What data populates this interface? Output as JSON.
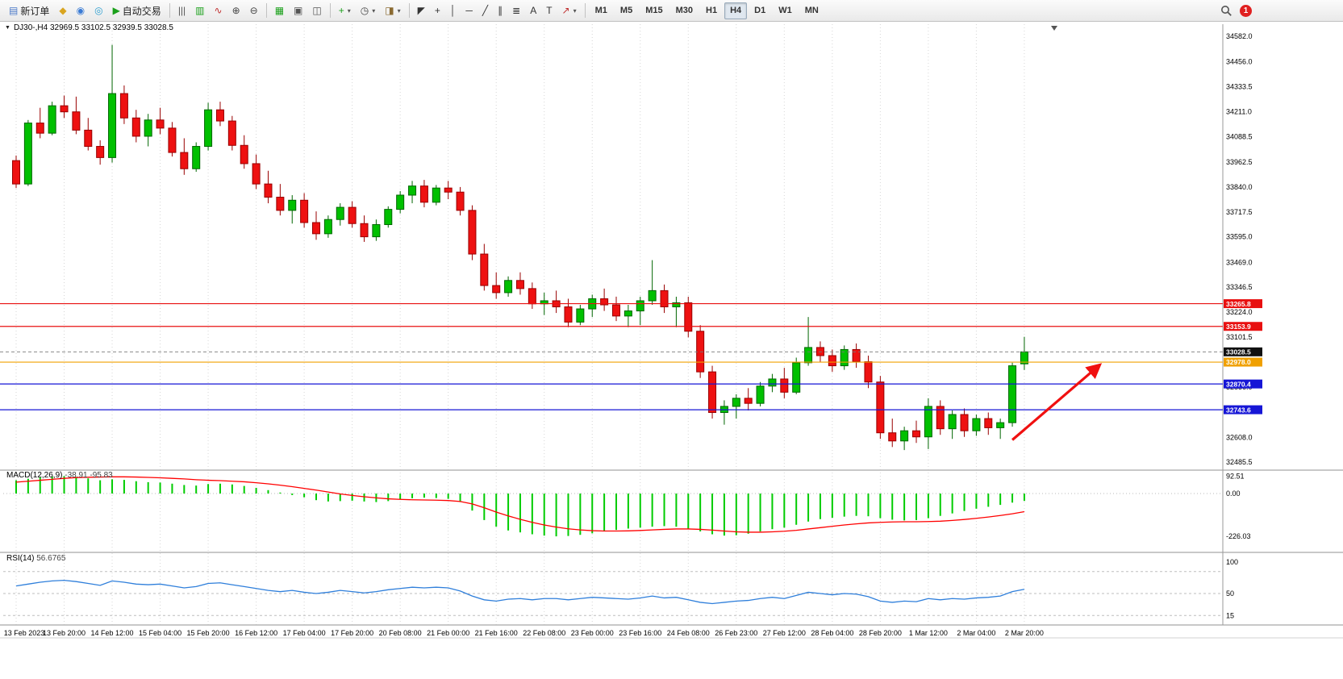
{
  "toolbar": {
    "caret_glyph": "▾",
    "notification_count": "1",
    "groups": [
      [
        {
          "name": "new-order",
          "glyph": "▤",
          "glyph_color": "#4a78c8",
          "label": "新订单"
        },
        {
          "name": "metaeditor",
          "glyph": "◆",
          "glyph_color": "#d9a520"
        },
        {
          "name": "market-watch",
          "glyph": "◉",
          "glyph_color": "#3a7bd5"
        },
        {
          "name": "community",
          "glyph": "◎",
          "glyph_color": "#2e9fd0"
        },
        {
          "name": "auto-trading",
          "glyph": "▶",
          "glyph_color": "#1aa01a",
          "label": "自动交易"
        }
      ],
      [
        {
          "name": "bar-chart",
          "glyph": "|||",
          "glyph_color": "#555555"
        },
        {
          "name": "candlestick-chart",
          "glyph": "▥",
          "glyph_color": "#1aa01a"
        },
        {
          "name": "line-chart",
          "glyph": "∿",
          "glyph_color": "#c03030"
        },
        {
          "name": "zoom-in",
          "glyph": "⊕",
          "glyph_color": "#444444"
        },
        {
          "name": "zoom-out",
          "glyph": "⊖",
          "glyph_color": "#444444"
        }
      ],
      [
        {
          "name": "indicators-list",
          "glyph": "▦",
          "glyph_color": "#1aa01a"
        },
        {
          "name": "new-window",
          "glyph": "▣",
          "glyph_color": "#555555"
        },
        {
          "name": "tile-windows",
          "glyph": "◫",
          "glyph_color": "#555555"
        }
      ],
      [
        {
          "name": "add-indicator",
          "glyph": "+",
          "glyph_color": "#1aa01a",
          "caret": true
        },
        {
          "name": "periods",
          "glyph": "◷",
          "glyph_color": "#444444",
          "caret": true
        },
        {
          "name": "templates",
          "glyph": "◨",
          "glyph_color": "#8a6a30",
          "caret": true
        }
      ],
      [
        {
          "name": "cursor",
          "glyph": "◤",
          "glyph_color": "#333333"
        },
        {
          "name": "crosshair",
          "glyph": "+",
          "glyph_color": "#333333"
        },
        {
          "name": "vertical-line",
          "glyph": "│",
          "glyph_color": "#333333"
        },
        {
          "name": "horizontal-line",
          "glyph": "─",
          "glyph_color": "#333333"
        },
        {
          "name": "trendline",
          "glyph": "╱",
          "glyph_color": "#333333"
        },
        {
          "name": "channel",
          "glyph": "∥",
          "glyph_color": "#333333"
        },
        {
          "name": "fibonacci",
          "glyph": "≣",
          "glyph_color": "#333333"
        },
        {
          "name": "text",
          "glyph": "A",
          "glyph_color": "#333333"
        },
        {
          "name": "text-label",
          "glyph": "T",
          "glyph_color": "#333333"
        },
        {
          "name": "arrows",
          "glyph": "↗",
          "glyph_color": "#c03030",
          "caret": true
        }
      ]
    ],
    "timeframes": {
      "items": [
        "M1",
        "M5",
        "M15",
        "M30",
        "H1",
        "H4",
        "D1",
        "W1",
        "MN"
      ],
      "active": "H4"
    }
  },
  "chart": {
    "collapse_glyph": "▼",
    "header": "DJ30-,H4 32969.5 33102.5 32939.5 33028.5",
    "symbol": "DJ30-",
    "timeframe": "H4",
    "open": "32969.5",
    "high": "33102.5",
    "low": "32939.5",
    "close": "33028.5"
  },
  "chart_data": {
    "type": "candlestick",
    "grid": "vertical-dotted",
    "y_range": [
      32485.5,
      34582.0
    ],
    "y_axis": {
      "labels": [
        "34582.0",
        "34456.0",
        "34333.5",
        "34211.0",
        "34088.5",
        "33962.5",
        "33840.0",
        "33717.5",
        "33595.0",
        "33469.0",
        "33346.5",
        "33224.0",
        "33101.5",
        "32978.5",
        "32856.0",
        "32733.5",
        "32608.0",
        "32485.5"
      ]
    },
    "x_labels": [
      "13 Feb 2023",
      "13 Feb 20:00",
      "14 Feb 12:00",
      "15 Feb 04:00",
      "15 Feb 20:00",
      "16 Feb 12:00",
      "17 Feb 04:00",
      "17 Feb 20:00",
      "20 Feb 08:00",
      "21 Feb 00:00",
      "21 Feb 16:00",
      "22 Feb 08:00",
      "23 Feb 00:00",
      "23 Feb 16:00",
      "24 Feb 08:00",
      "26 Feb 23:00",
      "27 Feb 12:00",
      "28 Feb 04:00",
      "28 Feb 20:00",
      "1 Mar 12:00",
      "2 Mar 04:00",
      "2 Mar 20:00"
    ],
    "colors": {
      "up": "#00c000",
      "down": "#ee1111",
      "up_border": "#006600",
      "down_border": "#990000"
    },
    "candles": [
      [
        33970,
        33995,
        33835,
        33855
      ],
      [
        33855,
        34170,
        33845,
        34155
      ],
      [
        34155,
        34230,
        34080,
        34105
      ],
      [
        34105,
        34260,
        34095,
        34240
      ],
      [
        34240,
        34290,
        34180,
        34210
      ],
      [
        34210,
        34285,
        34100,
        34120
      ],
      [
        34120,
        34180,
        34020,
        34040
      ],
      [
        34040,
        34070,
        33950,
        33985
      ],
      [
        33985,
        34540,
        33960,
        34300
      ],
      [
        34300,
        34340,
        34150,
        34180
      ],
      [
        34180,
        34220,
        34060,
        34090
      ],
      [
        34090,
        34200,
        34040,
        34170
      ],
      [
        34170,
        34230,
        34100,
        34130
      ],
      [
        34130,
        34160,
        33990,
        34010
      ],
      [
        34010,
        34080,
        33900,
        33930
      ],
      [
        33930,
        34060,
        33915,
        34040
      ],
      [
        34040,
        34255,
        34020,
        34220
      ],
      [
        34220,
        34260,
        34140,
        34165
      ],
      [
        34165,
        34190,
        34020,
        34045
      ],
      [
        34045,
        34095,
        33930,
        33955
      ],
      [
        33955,
        34000,
        33830,
        33855
      ],
      [
        33855,
        33920,
        33760,
        33790
      ],
      [
        33790,
        33855,
        33700,
        33725
      ],
      [
        33725,
        33800,
        33660,
        33775
      ],
      [
        33775,
        33810,
        33640,
        33665
      ],
      [
        33665,
        33720,
        33580,
        33610
      ],
      [
        33610,
        33700,
        33590,
        33680
      ],
      [
        33680,
        33760,
        33650,
        33740
      ],
      [
        33740,
        33770,
        33640,
        33660
      ],
      [
        33660,
        33700,
        33570,
        33595
      ],
      [
        33595,
        33680,
        33575,
        33655
      ],
      [
        33655,
        33745,
        33640,
        33730
      ],
      [
        33730,
        33820,
        33710,
        33800
      ],
      [
        33800,
        33870,
        33760,
        33845
      ],
      [
        33845,
        33875,
        33740,
        33765
      ],
      [
        33765,
        33850,
        33750,
        33835
      ],
      [
        33835,
        33870,
        33780,
        33815
      ],
      [
        33815,
        33840,
        33700,
        33725
      ],
      [
        33725,
        33750,
        33480,
        33510
      ],
      [
        33510,
        33560,
        33330,
        33355
      ],
      [
        33355,
        33420,
        33290,
        33320
      ],
      [
        33320,
        33400,
        33300,
        33380
      ],
      [
        33380,
        33420,
        33310,
        33340
      ],
      [
        33340,
        33370,
        33240,
        33265
      ],
      [
        33265,
        33320,
        33210,
        33280
      ],
      [
        33280,
        33330,
        33220,
        33250
      ],
      [
        33250,
        33290,
        33150,
        33175
      ],
      [
        33175,
        33260,
        33160,
        33240
      ],
      [
        33240,
        33310,
        33200,
        33290
      ],
      [
        33290,
        33340,
        33230,
        33260
      ],
      [
        33260,
        33300,
        33180,
        33205
      ],
      [
        33205,
        33260,
        33150,
        33230
      ],
      [
        33230,
        33300,
        33160,
        33280
      ],
      [
        33280,
        33480,
        33260,
        33330
      ],
      [
        33330,
        33360,
        33220,
        33250
      ],
      [
        33250,
        33300,
        33150,
        33270
      ],
      [
        33270,
        33300,
        33100,
        33130
      ],
      [
        33130,
        33160,
        32900,
        32930
      ],
      [
        32930,
        32960,
        32700,
        32730
      ],
      [
        32730,
        32790,
        32670,
        32760
      ],
      [
        32760,
        32820,
        32700,
        32800
      ],
      [
        32800,
        32850,
        32740,
        32775
      ],
      [
        32775,
        32880,
        32760,
        32860
      ],
      [
        32860,
        32920,
        32830,
        32895
      ],
      [
        32895,
        32950,
        32800,
        32830
      ],
      [
        32830,
        33000,
        32820,
        32975
      ],
      [
        32975,
        33200,
        32960,
        33050
      ],
      [
        33050,
        33080,
        32980,
        33010
      ],
      [
        33010,
        33040,
        32930,
        32960
      ],
      [
        32960,
        33060,
        32940,
        33040
      ],
      [
        33040,
        33070,
        32950,
        32980
      ],
      [
        32980,
        33010,
        32850,
        32880
      ],
      [
        32880,
        32910,
        32600,
        32630
      ],
      [
        32630,
        32700,
        32560,
        32590
      ],
      [
        32590,
        32660,
        32545,
        32640
      ],
      [
        32640,
        32690,
        32580,
        32610
      ],
      [
        32610,
        32800,
        32550,
        32760
      ],
      [
        32760,
        32790,
        32620,
        32650
      ],
      [
        32650,
        32740,
        32600,
        32720
      ],
      [
        32720,
        32750,
        32610,
        32640
      ],
      [
        32640,
        32720,
        32615,
        32700
      ],
      [
        32700,
        32730,
        32620,
        32655
      ],
      [
        32655,
        32700,
        32600,
        32680
      ],
      [
        32680,
        32975,
        32660,
        32960
      ],
      [
        32969.5,
        33102.5,
        32939.5,
        33028.5
      ]
    ],
    "hlines": [
      {
        "price": 33265.8,
        "label": "33265.8",
        "color": "#e81010"
      },
      {
        "price": 33153.9,
        "label": "33153.9",
        "color": "#e81010"
      },
      {
        "price": 32978.0,
        "label": "32978.0",
        "color": "#f0a000"
      },
      {
        "price": 32870.4,
        "label": "32870.4",
        "color": "#1616d6"
      },
      {
        "price": 32743.6,
        "label": "32743.6",
        "color": "#1616d6"
      }
    ],
    "current_price": {
      "value": 33028.5,
      "label": "33028.5",
      "badge_color": "#111111"
    },
    "annotations": [
      {
        "type": "arrow",
        "from_bar": 83,
        "from_price": 32595,
        "to_bar": 90.3,
        "to_price": 32965,
        "color": "#f01010"
      }
    ],
    "indicators": [
      {
        "name": "MACD",
        "label": "MACD(12,26,9)",
        "values_text": "-38.91 -95.83",
        "axis_labels": [
          "92.51",
          "0.00",
          "-226.03"
        ],
        "colors": {
          "histogram": "#00cc00",
          "signal": "#ff0000"
        },
        "histogram": [
          70,
          78,
          85,
          90,
          92,
          88,
          80,
          70,
          75,
          72,
          65,
          60,
          58,
          52,
          45,
          42,
          50,
          52,
          48,
          40,
          30,
          18,
          5,
          -8,
          -20,
          -35,
          -42,
          -40,
          -38,
          -42,
          -45,
          -40,
          -32,
          -25,
          -22,
          -24,
          -28,
          -45,
          -90,
          -140,
          -175,
          -195,
          -205,
          -215,
          -222,
          -226,
          -224,
          -218,
          -210,
          -200,
          -192,
          -185,
          -180,
          -175,
          -172,
          -175,
          -185,
          -200,
          -215,
          -222,
          -220,
          -212,
          -200,
          -188,
          -180,
          -165,
          -148,
          -135,
          -128,
          -122,
          -118,
          -120,
          -130,
          -138,
          -142,
          -140,
          -130,
          -118,
          -105,
          -92,
          -80,
          -70,
          -60,
          -48,
          -38.91
        ],
        "signal": [
          60,
          65,
          70,
          75,
          80,
          84,
          86,
          87,
          88,
          88,
          87,
          85,
          83,
          80,
          77,
          73,
          70,
          68,
          65,
          62,
          57,
          51,
          44,
          36,
          27,
          18,
          8,
          -2,
          -10,
          -17,
          -23,
          -28,
          -31,
          -33,
          -34,
          -35,
          -37,
          -42,
          -55,
          -75,
          -98,
          -118,
          -136,
          -152,
          -166,
          -177,
          -186,
          -192,
          -196,
          -198,
          -198,
          -197,
          -195,
          -192,
          -189,
          -187,
          -187,
          -189,
          -193,
          -198,
          -202,
          -204,
          -204,
          -202,
          -199,
          -194,
          -187,
          -180,
          -173,
          -166,
          -160,
          -155,
          -152,
          -150,
          -149,
          -149,
          -148,
          -146,
          -142,
          -137,
          -131,
          -124,
          -116,
          -107,
          -95.83
        ]
      },
      {
        "name": "RSI",
        "label": "RSI(14)",
        "value_text": "56.6765",
        "axis_labels": [
          "100",
          "50",
          "15"
        ],
        "levels": [
          85,
          50,
          15
        ],
        "color": "#2f7fdb",
        "values": [
          62,
          65,
          68,
          70,
          71,
          69,
          66,
          63,
          70,
          68,
          65,
          64,
          65,
          62,
          59,
          61,
          66,
          67,
          64,
          61,
          58,
          55,
          53,
          55,
          52,
          50,
          52,
          55,
          53,
          51,
          53,
          56,
          58,
          60,
          59,
          60,
          59,
          54,
          46,
          40,
          38,
          41,
          42,
          40,
          42,
          42,
          40,
          42,
          44,
          43,
          42,
          41,
          43,
          46,
          43,
          44,
          40,
          36,
          34,
          36,
          38,
          39,
          42,
          44,
          42,
          47,
          52,
          50,
          48,
          50,
          49,
          45,
          38,
          36,
          38,
          37,
          42,
          40,
          42,
          41,
          43,
          44,
          46,
          53,
          56.68
        ]
      }
    ]
  }
}
